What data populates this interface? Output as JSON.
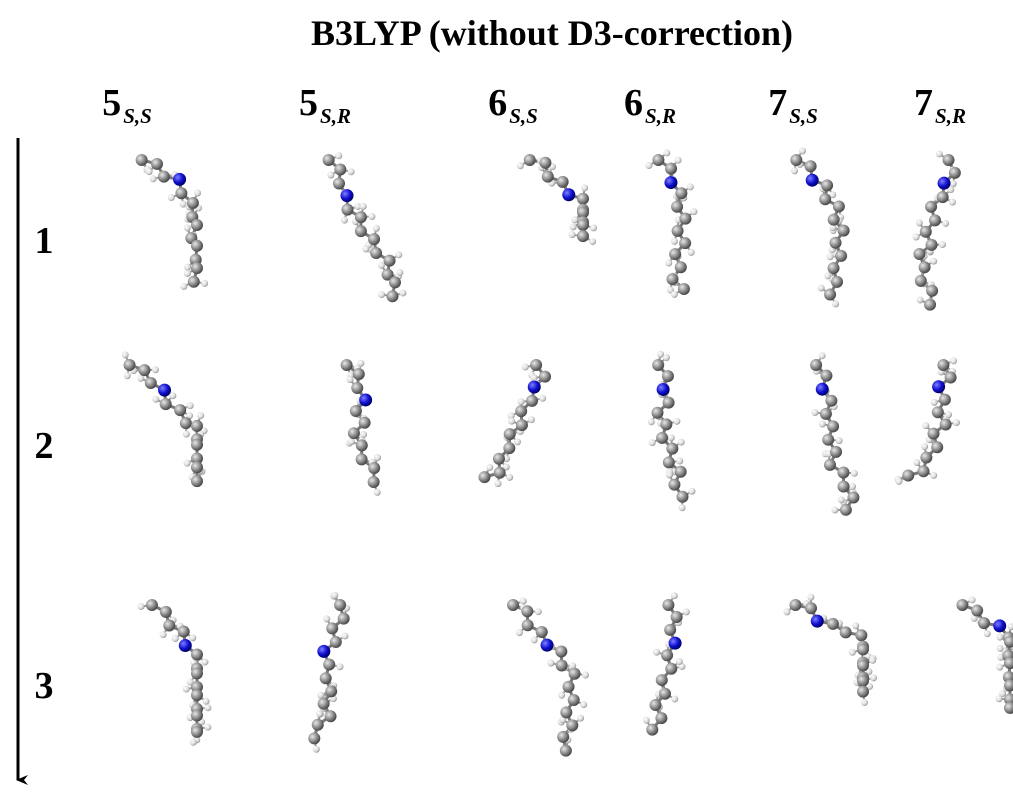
{
  "header": {
    "title": "B3LYP (without D3-correction)"
  },
  "columns": [
    {
      "number": "5",
      "subscript": "S,S"
    },
    {
      "number": "5",
      "subscript": "S,R"
    },
    {
      "number": "6",
      "subscript": "S,S"
    },
    {
      "number": "6",
      "subscript": "S,R"
    },
    {
      "number": "7",
      "subscript": "S,S"
    },
    {
      "number": "7",
      "subscript": "S,R"
    }
  ],
  "rows": [
    "1",
    "2",
    "3"
  ]
}
